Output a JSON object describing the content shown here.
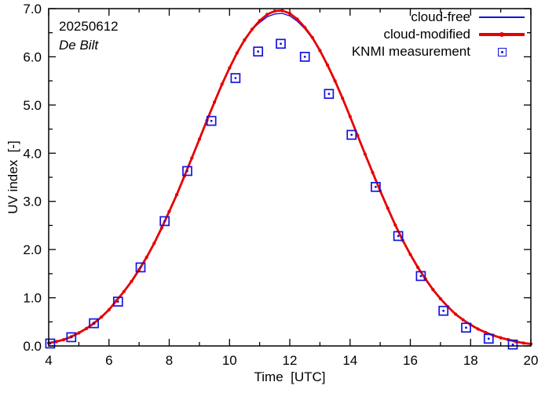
{
  "chart_data": {
    "type": "line",
    "date_label": "20250612",
    "station_label": "De Bilt",
    "xlabel": "Time  [UTC]",
    "ylabel": "UV index  [-]",
    "xlim": [
      4,
      20
    ],
    "ylim": [
      0,
      7
    ],
    "grid": false,
    "legend_position": "top-right-inside",
    "xticks": [
      4,
      6,
      8,
      10,
      12,
      14,
      16,
      18,
      20
    ],
    "xtick_labels": [
      "4",
      "6",
      "8",
      "10",
      "12",
      "14",
      "16",
      "18",
      "20"
    ],
    "x_minor_step": 1,
    "yticks": [
      0,
      1,
      2,
      3,
      4,
      5,
      6,
      7
    ],
    "ytick_labels": [
      "0.0",
      "1.0",
      "2.0",
      "3.0",
      "4.0",
      "5.0",
      "6.0",
      "7.0"
    ],
    "y_minor_step": 0.5,
    "legend": [
      {
        "label": "cloud-free",
        "type": "thin-line",
        "color": "#1414dc"
      },
      {
        "label": "cloud-modified",
        "type": "thick-line-with-dots",
        "color": "#e60000"
      },
      {
        "label": "KNMI measurement",
        "type": "open-square-with-dot",
        "color": "#1414dc"
      }
    ],
    "series": {
      "x": [
        4,
        4.25,
        4.5,
        4.75,
        5,
        5.25,
        5.5,
        5.75,
        6,
        6.25,
        6.5,
        6.75,
        7,
        7.25,
        7.5,
        7.75,
        8,
        8.25,
        8.5,
        8.75,
        9,
        9.25,
        9.5,
        9.75,
        10,
        10.25,
        10.5,
        10.75,
        11,
        11.25,
        11.5,
        11.75,
        12,
        12.25,
        12.5,
        12.75,
        13,
        13.25,
        13.5,
        13.75,
        14,
        14.25,
        14.5,
        14.75,
        15,
        15.25,
        15.5,
        15.75,
        16,
        16.25,
        16.5,
        16.75,
        17,
        17.25,
        17.5,
        17.75,
        18,
        18.25,
        18.5,
        18.75,
        19,
        19.25,
        19.5,
        19.75,
        20
      ],
      "cloud_free": [
        0.06,
        0.09,
        0.13,
        0.19,
        0.27,
        0.36,
        0.47,
        0.6,
        0.75,
        0.94,
        1.13,
        1.34,
        1.58,
        1.84,
        2.13,
        2.45,
        2.79,
        3.14,
        3.52,
        3.9,
        4.29,
        4.68,
        5.06,
        5.43,
        5.77,
        6.08,
        6.35,
        6.57,
        6.71,
        6.83,
        6.89,
        6.9,
        6.85,
        6.74,
        6.58,
        6.38,
        6.13,
        5.83,
        5.5,
        5.14,
        4.76,
        4.37,
        3.98,
        3.6,
        3.22,
        2.86,
        2.51,
        2.19,
        1.9,
        1.63,
        1.39,
        1.17,
        0.98,
        0.81,
        0.66,
        0.54,
        0.44,
        0.35,
        0.28,
        0.22,
        0.17,
        0.13,
        0.09,
        0.06,
        0.04
      ],
      "cloud_modified": [
        0.06,
        0.09,
        0.13,
        0.19,
        0.27,
        0.36,
        0.47,
        0.6,
        0.75,
        0.94,
        1.13,
        1.34,
        1.58,
        1.84,
        2.13,
        2.45,
        2.79,
        3.14,
        3.52,
        3.9,
        4.29,
        4.68,
        5.06,
        5.43,
        5.77,
        6.08,
        6.35,
        6.57,
        6.75,
        6.88,
        6.95,
        6.96,
        6.9,
        6.78,
        6.61,
        6.4,
        6.13,
        5.83,
        5.5,
        5.14,
        4.76,
        4.37,
        3.98,
        3.6,
        3.22,
        2.86,
        2.51,
        2.19,
        1.9,
        1.63,
        1.39,
        1.17,
        0.98,
        0.81,
        0.66,
        0.54,
        0.44,
        0.35,
        0.28,
        0.22,
        0.17,
        0.13,
        0.09,
        0.06,
        0.04
      ]
    },
    "measurements": [
      [
        4.05,
        0.05
      ],
      [
        4.75,
        0.18
      ],
      [
        5.5,
        0.47
      ],
      [
        6.3,
        0.92
      ],
      [
        7.05,
        1.63
      ],
      [
        7.85,
        2.59
      ],
      [
        8.6,
        3.63
      ],
      [
        9.4,
        4.67
      ],
      [
        10.2,
        5.56
      ],
      [
        10.95,
        6.11
      ],
      [
        11.7,
        6.27
      ],
      [
        12.5,
        6.0
      ],
      [
        13.3,
        5.23
      ],
      [
        14.05,
        4.38
      ],
      [
        14.85,
        3.3
      ],
      [
        15.6,
        2.28
      ],
      [
        16.35,
        1.45
      ],
      [
        17.1,
        0.73
      ],
      [
        17.85,
        0.38
      ],
      [
        18.6,
        0.15
      ],
      [
        19.4,
        0.03
      ]
    ]
  }
}
